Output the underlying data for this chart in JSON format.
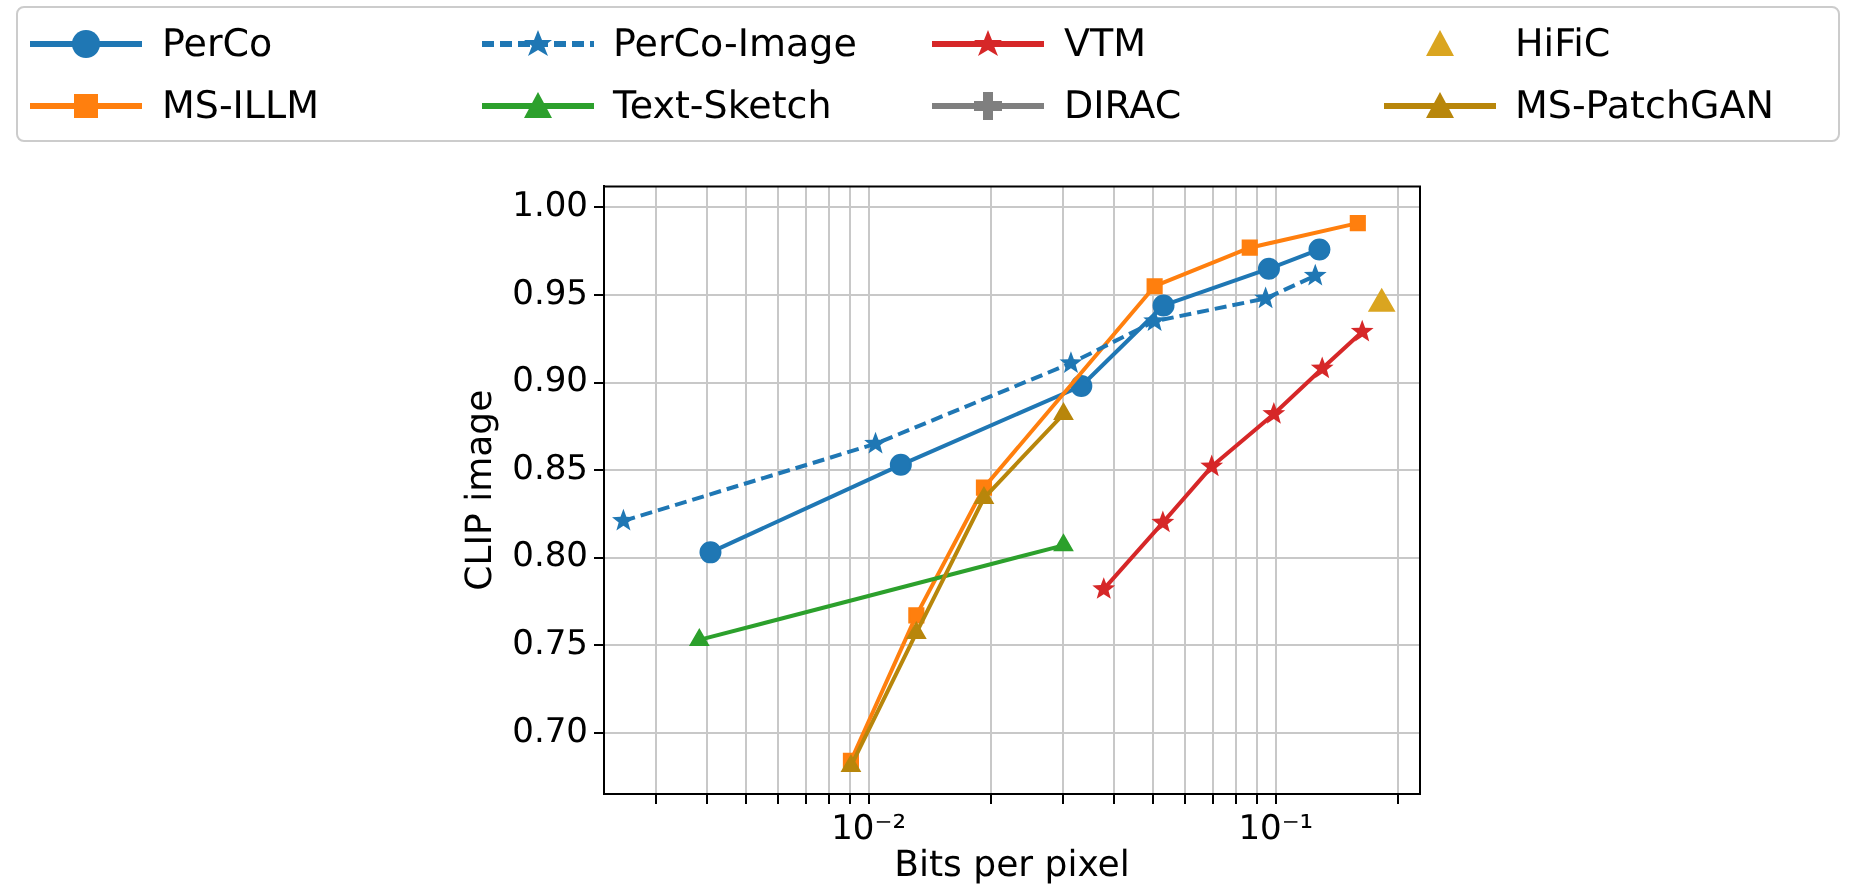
{
  "chart_data": {
    "type": "line",
    "xlabel": "Bits per pixel",
    "ylabel": "CLIP image",
    "log": "x",
    "grid": true,
    "legend": "top",
    "xlim": [
      0.00224,
      0.226
    ],
    "ylim": [
      0.665,
      1.012
    ],
    "xticks": [
      {
        "value": 0.003,
        "label": null
      },
      {
        "value": 0.004,
        "label": null
      },
      {
        "value": 0.005,
        "label": null
      },
      {
        "value": 0.006,
        "label": null
      },
      {
        "value": 0.007,
        "label": null
      },
      {
        "value": 0.008,
        "label": null
      },
      {
        "value": 0.009,
        "label": null
      },
      {
        "value": 0.01,
        "label": "10⁻²"
      },
      {
        "value": 0.02,
        "label": null
      },
      {
        "value": 0.03,
        "label": null
      },
      {
        "value": 0.04,
        "label": null
      },
      {
        "value": 0.05,
        "label": null
      },
      {
        "value": 0.06,
        "label": null
      },
      {
        "value": 0.07,
        "label": null
      },
      {
        "value": 0.08,
        "label": null
      },
      {
        "value": 0.09,
        "label": null
      },
      {
        "value": 0.1,
        "label": "10⁻¹"
      },
      {
        "value": 0.2,
        "label": null
      }
    ],
    "yticks": [
      {
        "value": 0.7,
        "label": "0.70"
      },
      {
        "value": 0.75,
        "label": "0.75"
      },
      {
        "value": 0.8,
        "label": "0.80"
      },
      {
        "value": 0.85,
        "label": "0.85"
      },
      {
        "value": 0.9,
        "label": "0.90"
      },
      {
        "value": 0.95,
        "label": "0.95"
      },
      {
        "value": 1.0,
        "label": "1.00"
      }
    ],
    "series": [
      {
        "name": "PerCo",
        "color": "#1f77b4",
        "marker": "circle",
        "line_style": "solid",
        "x": [
          0.00409,
          0.012,
          0.0333,
          0.053,
          0.0962,
          0.128
        ],
        "values": [
          0.803,
          0.853,
          0.898,
          0.944,
          0.965,
          0.976
        ]
      },
      {
        "name": "MS-ILLM",
        "color": "#ff7f0e",
        "marker": "square",
        "line_style": "solid",
        "x": [
          0.00905,
          0.0131,
          0.0192,
          0.0504,
          0.0863,
          0.159
        ],
        "values": [
          0.684,
          0.767,
          0.84,
          0.955,
          0.977,
          0.991
        ]
      },
      {
        "name": "PerCo-Image",
        "color": "#1f77b4",
        "marker": "star",
        "line_style": "dashed",
        "x": [
          0.0025,
          0.0104,
          0.0314,
          0.0504,
          0.0944,
          0.125
        ],
        "values": [
          0.821,
          0.865,
          0.911,
          0.935,
          0.948,
          0.961
        ]
      },
      {
        "name": "Text-Sketch",
        "color": "#2ca02c",
        "marker": "triangle",
        "line_style": "solid",
        "x": [
          0.00384,
          0.0301
        ],
        "values": [
          0.753,
          0.807
        ]
      },
      {
        "name": "VTM",
        "color": "#d62728",
        "marker": "star",
        "line_style": "solid",
        "x": [
          0.0378,
          0.0528,
          0.0696,
          0.0989,
          0.13,
          0.163
        ],
        "values": [
          0.782,
          0.82,
          0.852,
          0.882,
          0.908,
          0.929
        ]
      },
      {
        "name": "DIRAC",
        "color": "#7f7f7f",
        "marker": "cross",
        "line_style": "solid"
      },
      {
        "name": "HiFiC",
        "color": "#daa520",
        "type": "scatter",
        "marker": "triangle",
        "x": [
          0.182
        ],
        "values": [
          0.945
        ]
      },
      {
        "name": "MS-PatchGAN",
        "color": "#b8860b",
        "marker": "triangle",
        "line_style": "solid",
        "x": [
          0.00905,
          0.0131,
          0.0192,
          0.0301
        ],
        "values": [
          0.681,
          0.757,
          0.834,
          0.882
        ]
      }
    ]
  }
}
